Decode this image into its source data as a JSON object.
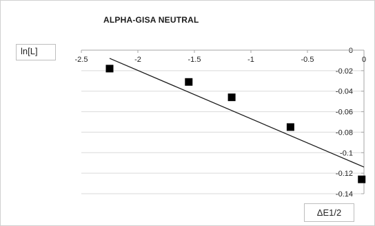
{
  "chart_data": {
    "type": "scatter",
    "title": "ALPHA-GISA NEUTRAL",
    "xlabel": "ΔE1/2",
    "ylabel": "ln[L]",
    "xlim": [
      -2.5,
      0
    ],
    "ylim": [
      -0.14,
      0
    ],
    "x_ticks": [
      "-2.5",
      "-2",
      "-1.5",
      "-1",
      "-0.5",
      "0"
    ],
    "y_ticks": [
      "0",
      "-0.02",
      "-0.04",
      "-0.06",
      "-0.08",
      "-0.1",
      "-0.12",
      "-0.14"
    ],
    "grid": "horizontal",
    "points": [
      {
        "x": -2.25,
        "y": -0.018
      },
      {
        "x": -1.55,
        "y": -0.031
      },
      {
        "x": -1.17,
        "y": -0.046
      },
      {
        "x": -0.65,
        "y": -0.075
      },
      {
        "x": -0.02,
        "y": -0.126
      }
    ],
    "trendline": {
      "x_start": -2.25,
      "y_start": -0.008,
      "x_end": 0,
      "y_end": -0.114
    },
    "colors": {
      "marker": "#000000",
      "line": "#1a1a1a",
      "grid": "#d9d9d9",
      "axis": "#a6a6a6"
    }
  }
}
